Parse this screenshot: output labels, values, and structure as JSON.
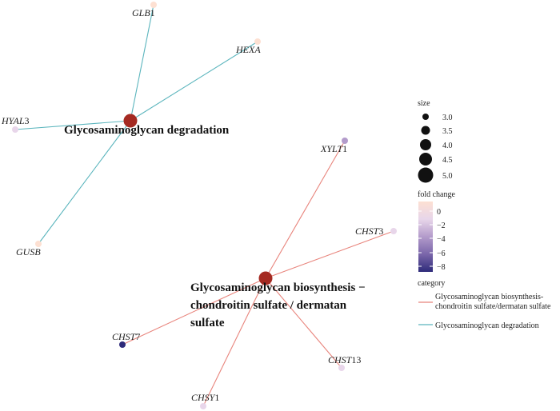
{
  "network": {
    "pathways": [
      {
        "id": "degradation",
        "lines": [
          "Glycosaminoglycan degradation"
        ],
        "color": "#5bb5bd"
      },
      {
        "id": "biosynthesis",
        "lines": [
          "Glycosaminoglycan biosynthesis −",
          "chondroitin sulfate / dermatan",
          "sulfate"
        ],
        "color": "#e8847c"
      }
    ],
    "genes": [
      {
        "name": "GLB",
        "suffix": "1",
        "pathway": "degradation",
        "fold_change": 0
      },
      {
        "name": "HEXA",
        "suffix": "",
        "pathway": "degradation",
        "fold_change": 0
      },
      {
        "name": "HYAL",
        "suffix": "3",
        "pathway": "degradation",
        "fold_change": -2
      },
      {
        "name": "GUSB",
        "suffix": "",
        "pathway": "degradation",
        "fold_change": 0
      },
      {
        "name": "XYLT",
        "suffix": "1",
        "pathway": "biosynthesis",
        "fold_change": -3
      },
      {
        "name": "CHST",
        "suffix": "3",
        "pathway": "biosynthesis",
        "fold_change": -1
      },
      {
        "name": "CHST",
        "suffix": "7",
        "pathway": "biosynthesis",
        "fold_change": -8
      },
      {
        "name": "CHST",
        "suffix": "13",
        "pathway": "biosynthesis",
        "fold_change": -1
      },
      {
        "name": "CHSY",
        "suffix": "1",
        "pathway": "biosynthesis",
        "fold_change": -2
      }
    ],
    "node_color": "#a52a22"
  },
  "legend": {
    "size": {
      "title": "size",
      "values": [
        "3.0",
        "3.5",
        "4.0",
        "4.5",
        "5.0"
      ]
    },
    "fold_change": {
      "title": "fold change",
      "ticks": [
        "0",
        "−2",
        "−4",
        "−6",
        "−8"
      ],
      "colors": [
        "#fde0d2",
        "#e8d6ea",
        "#b39bcb",
        "#7a66aa",
        "#2e2b7a"
      ]
    },
    "category": {
      "title": "category",
      "items": [
        {
          "lines": [
            "Glycosaminoglycan biosynthesis-",
            "chondroitin sulfate/dermatan sulfate"
          ],
          "color": "#e8847c"
        },
        {
          "lines": [
            "Glycosaminoglycan degradation"
          ],
          "color": "#5bb5bd"
        }
      ]
    }
  }
}
